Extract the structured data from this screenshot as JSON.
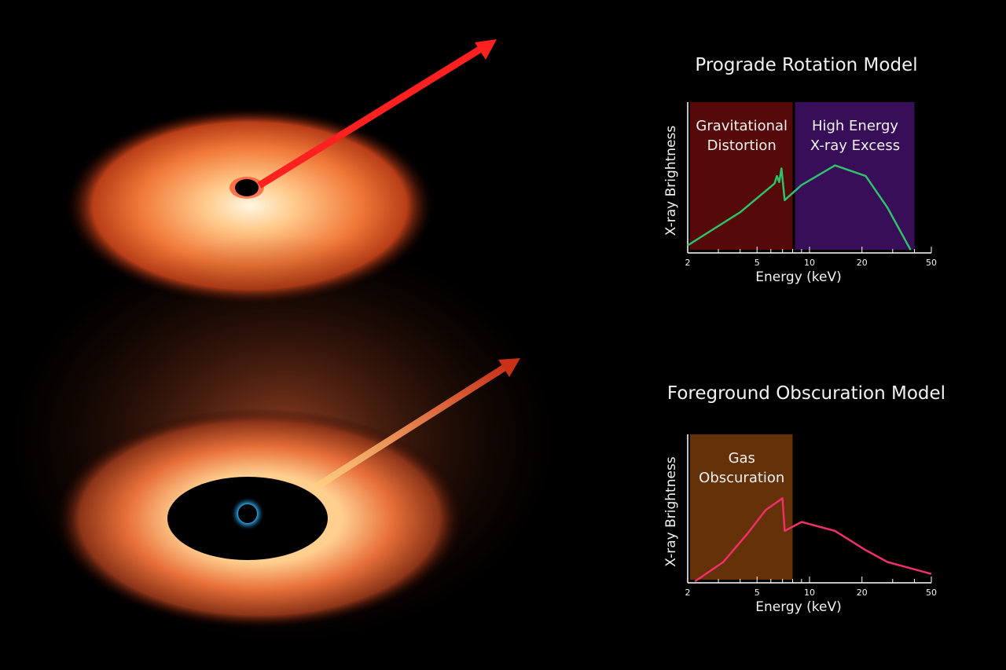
{
  "chart_data": [
    {
      "type": "line",
      "title": "Prograde Rotation Model",
      "xlabel": "Energy (keV)",
      "ylabel": "X-ray Brightness",
      "xscale": "log",
      "xlim": [
        2,
        50
      ],
      "xticks": [
        2,
        5,
        10,
        20,
        50
      ],
      "minor_xticks": [
        3,
        4,
        6,
        7,
        8,
        9,
        30,
        40
      ],
      "ylim": [
        0,
        100
      ],
      "bands": [
        {
          "lines": [
            "Gravitational",
            "Distortion"
          ],
          "x_range": [
            2,
            8
          ],
          "color": "#5a0a08"
        },
        {
          "lines": [
            "High Energy",
            "X-ray Excess"
          ],
          "x_range": [
            8,
            40
          ],
          "color": "#3a0f5c"
        }
      ],
      "series": [
        {
          "color": "#2fc26a",
          "x": [
            2,
            4,
            6.3,
            6.5,
            6.7,
            6.9,
            7.2,
            9,
            14,
            21,
            28,
            38
          ],
          "values": [
            5,
            27,
            46,
            51,
            47,
            56,
            35,
            45,
            58,
            51,
            30,
            2
          ]
        }
      ]
    },
    {
      "type": "line",
      "title": "Foreground Obscuration Model",
      "xlabel": "Energy (keV)",
      "ylabel": "X-ray Brightness",
      "xscale": "log",
      "xlim": [
        2,
        50
      ],
      "xticks": [
        2,
        5,
        10,
        20,
        50
      ],
      "minor_xticks": [
        3,
        4,
        6,
        7,
        8,
        9,
        30,
        40
      ],
      "ylim": [
        0,
        100
      ],
      "bands": [
        {
          "lines": [
            "Gas",
            "Obscuration"
          ],
          "x_range": [
            2,
            8
          ],
          "color": "#6a3408"
        }
      ],
      "series": [
        {
          "color": "#f0306a",
          "x": [
            2.2,
            3.2,
            4.4,
            5.6,
            7.0,
            7.2,
            9,
            14,
            21,
            28,
            50
          ],
          "values": [
            1,
            14,
            33,
            49,
            57,
            35,
            41,
            35,
            22,
            14,
            6
          ]
        }
      ]
    }
  ]
}
